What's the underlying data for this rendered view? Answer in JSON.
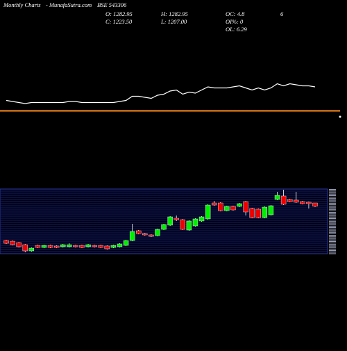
{
  "chart_data": {
    "type": "candlestick",
    "title": "Monthly Charts",
    "source": "- MunafaSutra.com",
    "symbol": "BSE 543306",
    "stats": [
      "O: 1282.95",
      "H: 1282.95",
      "OC: 4.8",
      "6",
      "C: 1223.50",
      "L: 1207.00",
      "OI%: 0",
      "OL: 6.29"
    ],
    "ylim": [
      356,
      1537
    ],
    "up_color": "#00ee00",
    "down_color": "#ee0000",
    "ohlc": [
      [
        597,
        610,
        533,
        546
      ],
      [
        584,
        597,
        508,
        521
      ],
      [
        559,
        572,
        470,
        483
      ],
      [
        521,
        534,
        381,
        407
      ],
      [
        407,
        470,
        394,
        457
      ],
      [
        508,
        521,
        457,
        470
      ],
      [
        470,
        521,
        457,
        508
      ],
      [
        508,
        521,
        457,
        470
      ],
      [
        496,
        508,
        457,
        470
      ],
      [
        483,
        534,
        470,
        521
      ],
      [
        483,
        546,
        470,
        521
      ],
      [
        508,
        521,
        470,
        483
      ],
      [
        508,
        521,
        457,
        470
      ],
      [
        483,
        534,
        470,
        521
      ],
      [
        508,
        521,
        470,
        483
      ],
      [
        508,
        521,
        457,
        470
      ],
      [
        496,
        508,
        432,
        445
      ],
      [
        470,
        521,
        457,
        508
      ],
      [
        483,
        546,
        470,
        534
      ],
      [
        508,
        610,
        496,
        597
      ],
      [
        597,
        902,
        584,
        762
      ],
      [
        775,
        788,
        711,
        724
      ],
      [
        724,
        737,
        686,
        699
      ],
      [
        699,
        711,
        660,
        673
      ],
      [
        686,
        813,
        673,
        800
      ],
      [
        800,
        902,
        788,
        889
      ],
      [
        877,
        1042,
        864,
        1029
      ],
      [
        1004,
        1054,
        953,
        978
      ],
      [
        978,
        991,
        788,
        800
      ],
      [
        788,
        966,
        775,
        953
      ],
      [
        864,
        1004,
        851,
        991
      ],
      [
        953,
        1042,
        940,
        1029
      ],
      [
        991,
        1258,
        978,
        1245
      ],
      [
        1283,
        1321,
        1232,
        1245
      ],
      [
        1283,
        1296,
        1130,
        1143
      ],
      [
        1143,
        1232,
        1130,
        1220
      ],
      [
        1220,
        1232,
        1143,
        1156
      ],
      [
        1220,
        1283,
        1207,
        1270
      ],
      [
        1308,
        1321,
        1054,
        1118
      ],
      [
        1181,
        1194,
        1004,
        1016
      ],
      [
        1169,
        1181,
        1004,
        1016
      ],
      [
        1016,
        1220,
        1004,
        1207
      ],
      [
        1067,
        1245,
        1054,
        1232
      ],
      [
        1347,
        1486,
        1334,
        1423
      ],
      [
        1410,
        1524,
        1245,
        1258
      ],
      [
        1347,
        1360,
        1296,
        1308
      ],
      [
        1334,
        1486,
        1283,
        1296
      ],
      [
        1308,
        1321,
        1258,
        1270
      ],
      [
        1296,
        1308,
        1181,
        1270
      ],
      [
        1282.95,
        1282.95,
        1207,
        1223.5
      ]
    ],
    "indicator": {
      "ylim": [
        0,
        100
      ],
      "color": "#ffffff",
      "level": 7,
      "level_color": "#ff8c1a",
      "values": [
        17,
        16,
        15,
        14,
        15,
        15,
        15,
        15,
        15,
        15,
        16,
        16,
        15,
        15,
        15,
        15,
        15,
        15,
        16,
        17,
        21,
        21,
        20,
        19,
        22,
        23,
        26,
        27,
        23,
        25,
        24,
        27,
        30,
        29,
        29,
        29,
        30,
        31,
        29,
        27,
        29,
        27,
        29,
        33,
        31,
        33,
        32,
        31,
        31,
        30
      ]
    }
  }
}
